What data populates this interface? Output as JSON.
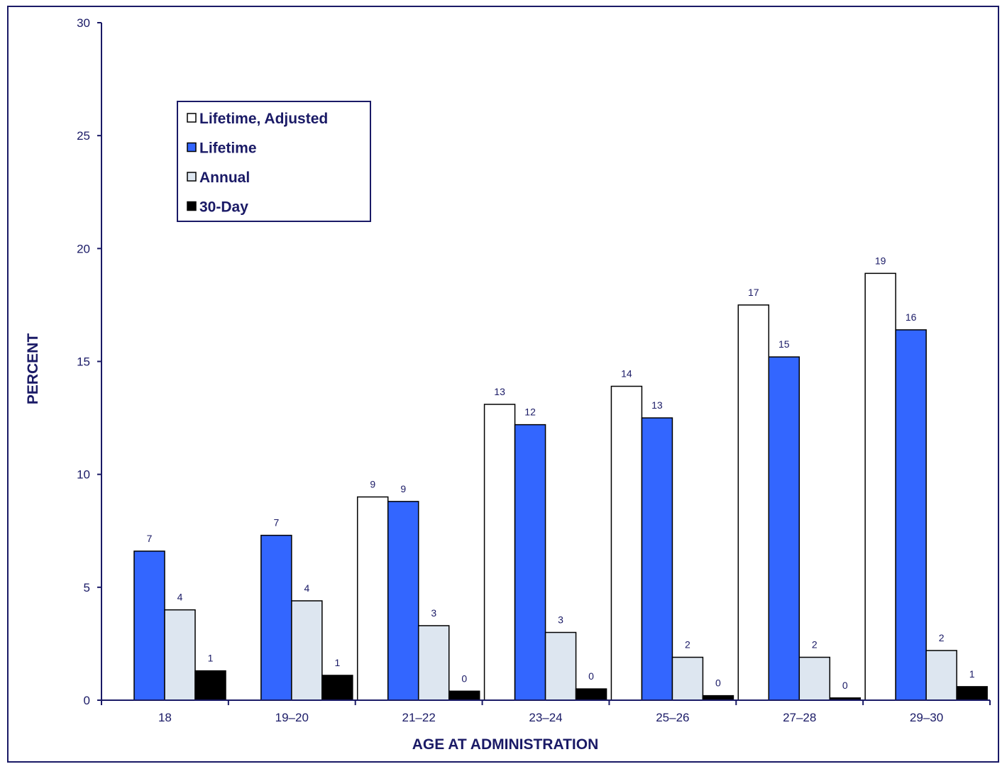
{
  "chart_data": {
    "type": "bar",
    "xlabel": "AGE AT ADMINISTRATION",
    "ylabel": "PERCENT",
    "ylim": [
      0,
      30
    ],
    "yticks": [
      0,
      5,
      10,
      15,
      20,
      25,
      30
    ],
    "grid": false,
    "legend_position": "top-left",
    "categories": [
      "18",
      "19–20",
      "21–22",
      "23–24",
      "25–26",
      "27–28",
      "29–30"
    ],
    "series": [
      {
        "name": "Lifetime, Adjusted",
        "color": "#ffffff",
        "values": [
          null,
          null,
          9.0,
          13.1,
          13.9,
          17.5,
          18.9
        ],
        "labels": [
          "",
          "",
          "9",
          "13",
          "14",
          "17",
          "19"
        ]
      },
      {
        "name": "Lifetime",
        "color": "#3366ff",
        "values": [
          6.6,
          7.3,
          8.8,
          12.2,
          12.5,
          15.2,
          16.4
        ],
        "labels": [
          "7",
          "7",
          "9",
          "12",
          "13",
          "15",
          "16"
        ]
      },
      {
        "name": "Annual",
        "color": "#dde6f0",
        "values": [
          4.0,
          4.4,
          3.3,
          3.0,
          1.9,
          1.9,
          2.2
        ],
        "labels": [
          "4",
          "4",
          "3",
          "3",
          "2",
          "2",
          "2"
        ]
      },
      {
        "name": "30-Day",
        "color": "#000000",
        "values": [
          1.3,
          1.1,
          0.4,
          0.5,
          0.2,
          0.1,
          0.6
        ],
        "labels": [
          "1",
          "1",
          "0",
          "0",
          "0",
          "0",
          "1"
        ]
      }
    ]
  }
}
